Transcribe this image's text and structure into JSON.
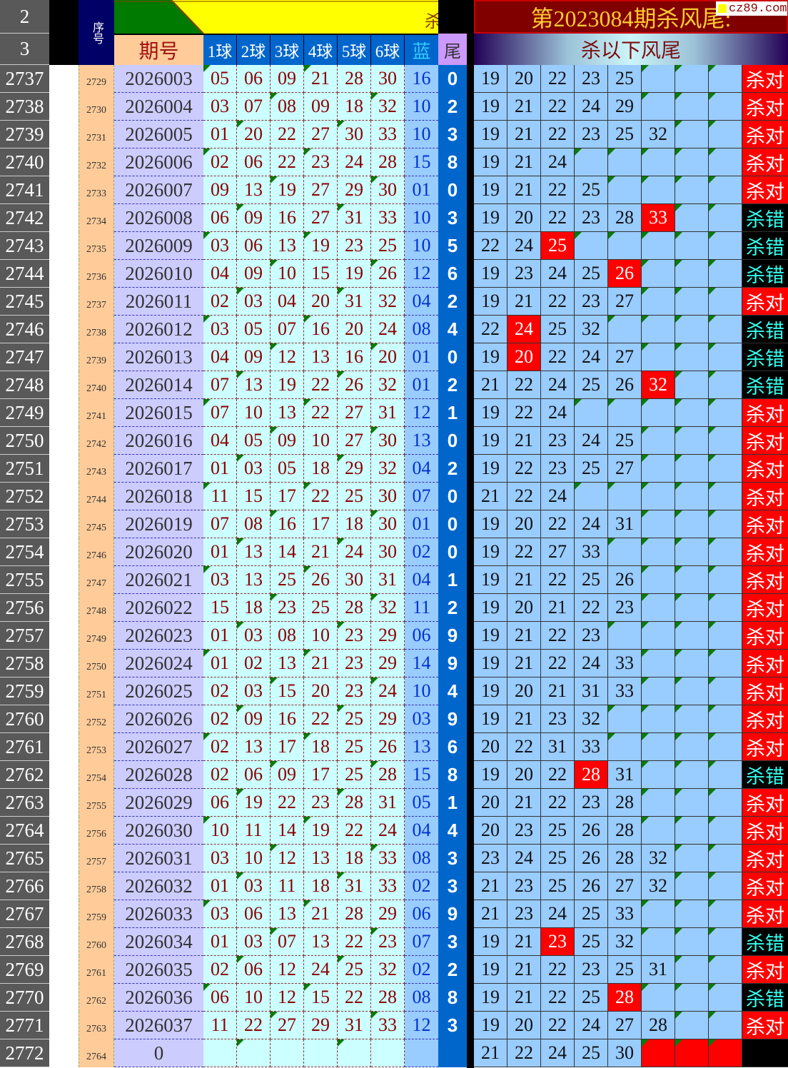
{
  "header": {
    "row_numbers": [
      "2",
      "3"
    ],
    "seq_label": "序号",
    "issue_label": "期号",
    "ball_labels": [
      "1球",
      "2球",
      "3球",
      "4球",
      "5球",
      "6球"
    ],
    "blue_label": "蓝",
    "tail_label": "尾",
    "title": "第2023084期杀风尾:",
    "subtitle": "杀以下风尾",
    "partial_glyph": "杀",
    "watermark": "cz89.com"
  },
  "colors": {
    "kill_hit": "#ff0000",
    "result_ok_bg": "#ff0000",
    "result_bad_bg": "#000000",
    "banner": "#800000"
  },
  "rows": [
    {
      "row": "2737",
      "seq": "2729",
      "issue": "2026003",
      "balls": [
        "05",
        "06",
        "09",
        "21",
        "28",
        "30"
      ],
      "blue": "16",
      "tail": "0",
      "kills": [
        "19",
        "20",
        "22",
        "23",
        "25"
      ],
      "hit": -1,
      "result": "杀对"
    },
    {
      "row": "2738",
      "seq": "2730",
      "issue": "2026004",
      "balls": [
        "03",
        "07",
        "08",
        "09",
        "18",
        "32"
      ],
      "blue": "10",
      "tail": "2",
      "kills": [
        "19",
        "21",
        "22",
        "24",
        "29"
      ],
      "hit": -1,
      "result": "杀对"
    },
    {
      "row": "2739",
      "seq": "2731",
      "issue": "2026005",
      "balls": [
        "01",
        "20",
        "22",
        "27",
        "30",
        "33"
      ],
      "blue": "10",
      "tail": "3",
      "kills": [
        "19",
        "21",
        "22",
        "23",
        "25",
        "32"
      ],
      "hit": -1,
      "result": "杀对"
    },
    {
      "row": "2740",
      "seq": "2732",
      "issue": "2026006",
      "balls": [
        "02",
        "06",
        "22",
        "23",
        "24",
        "28"
      ],
      "blue": "15",
      "tail": "8",
      "kills": [
        "19",
        "21",
        "24"
      ],
      "hit": -1,
      "result": "杀对"
    },
    {
      "row": "2741",
      "seq": "2733",
      "issue": "2026007",
      "balls": [
        "09",
        "13",
        "19",
        "27",
        "29",
        "30"
      ],
      "blue": "01",
      "tail": "0",
      "kills": [
        "19",
        "21",
        "22",
        "25"
      ],
      "hit": -1,
      "result": "杀对"
    },
    {
      "row": "2742",
      "seq": "2734",
      "issue": "2026008",
      "balls": [
        "06",
        "09",
        "16",
        "27",
        "31",
        "33"
      ],
      "blue": "10",
      "tail": "3",
      "kills": [
        "19",
        "20",
        "22",
        "23",
        "28",
        "33"
      ],
      "hit": 5,
      "result": "杀错"
    },
    {
      "row": "2743",
      "seq": "2735",
      "issue": "2026009",
      "balls": [
        "03",
        "06",
        "13",
        "19",
        "23",
        "25"
      ],
      "blue": "10",
      "tail": "5",
      "kills": [
        "22",
        "24",
        "25"
      ],
      "hit": 2,
      "result": "杀错"
    },
    {
      "row": "2744",
      "seq": "2736",
      "issue": "2026010",
      "balls": [
        "04",
        "09",
        "10",
        "15",
        "19",
        "26"
      ],
      "blue": "12",
      "tail": "6",
      "kills": [
        "19",
        "23",
        "24",
        "25",
        "26"
      ],
      "hit": 4,
      "result": "杀错"
    },
    {
      "row": "2745",
      "seq": "2737",
      "issue": "2026011",
      "balls": [
        "02",
        "03",
        "04",
        "20",
        "31",
        "32"
      ],
      "blue": "04",
      "tail": "2",
      "kills": [
        "19",
        "21",
        "22",
        "23",
        "27"
      ],
      "hit": -1,
      "result": "杀对"
    },
    {
      "row": "2746",
      "seq": "2738",
      "issue": "2026012",
      "balls": [
        "03",
        "05",
        "07",
        "16",
        "20",
        "24"
      ],
      "blue": "08",
      "tail": "4",
      "kills": [
        "22",
        "24",
        "25",
        "32"
      ],
      "hit": 1,
      "result": "杀错"
    },
    {
      "row": "2747",
      "seq": "2739",
      "issue": "2026013",
      "balls": [
        "04",
        "09",
        "12",
        "13",
        "16",
        "20"
      ],
      "blue": "01",
      "tail": "0",
      "kills": [
        "19",
        "20",
        "22",
        "24",
        "27"
      ],
      "hit": 1,
      "result": "杀错"
    },
    {
      "row": "2748",
      "seq": "2740",
      "issue": "2026014",
      "balls": [
        "07",
        "13",
        "19",
        "22",
        "26",
        "32"
      ],
      "blue": "01",
      "tail": "2",
      "kills": [
        "21",
        "22",
        "24",
        "25",
        "26",
        "32"
      ],
      "hit": 5,
      "result": "杀错"
    },
    {
      "row": "2749",
      "seq": "2741",
      "issue": "2026015",
      "balls": [
        "07",
        "10",
        "13",
        "22",
        "27",
        "31"
      ],
      "blue": "12",
      "tail": "1",
      "kills": [
        "19",
        "22",
        "24"
      ],
      "hit": -1,
      "result": "杀对"
    },
    {
      "row": "2750",
      "seq": "2742",
      "issue": "2026016",
      "balls": [
        "04",
        "05",
        "09",
        "10",
        "27",
        "30"
      ],
      "blue": "13",
      "tail": "0",
      "kills": [
        "19",
        "21",
        "23",
        "24",
        "25"
      ],
      "hit": -1,
      "result": "杀对"
    },
    {
      "row": "2751",
      "seq": "2743",
      "issue": "2026017",
      "balls": [
        "01",
        "03",
        "05",
        "18",
        "29",
        "32"
      ],
      "blue": "04",
      "tail": "2",
      "kills": [
        "19",
        "22",
        "23",
        "25",
        "27"
      ],
      "hit": -1,
      "result": "杀对"
    },
    {
      "row": "2752",
      "seq": "2744",
      "issue": "2026018",
      "balls": [
        "11",
        "15",
        "17",
        "22",
        "25",
        "30"
      ],
      "blue": "07",
      "tail": "0",
      "kills": [
        "21",
        "22",
        "24"
      ],
      "hit": -1,
      "result": "杀对"
    },
    {
      "row": "2753",
      "seq": "2745",
      "issue": "2026019",
      "balls": [
        "07",
        "08",
        "16",
        "17",
        "18",
        "30"
      ],
      "blue": "01",
      "tail": "0",
      "kills": [
        "19",
        "20",
        "22",
        "24",
        "31"
      ],
      "hit": -1,
      "result": "杀对"
    },
    {
      "row": "2754",
      "seq": "2746",
      "issue": "2026020",
      "balls": [
        "01",
        "13",
        "14",
        "21",
        "24",
        "30"
      ],
      "blue": "02",
      "tail": "0",
      "kills": [
        "19",
        "22",
        "27",
        "33"
      ],
      "hit": -1,
      "result": "杀对"
    },
    {
      "row": "2755",
      "seq": "2747",
      "issue": "2026021",
      "balls": [
        "03",
        "13",
        "25",
        "26",
        "30",
        "31"
      ],
      "blue": "04",
      "tail": "1",
      "kills": [
        "19",
        "21",
        "22",
        "25",
        "26"
      ],
      "hit": -1,
      "result": "杀对"
    },
    {
      "row": "2756",
      "seq": "2748",
      "issue": "2026022",
      "balls": [
        "15",
        "18",
        "23",
        "25",
        "28",
        "32"
      ],
      "blue": "11",
      "tail": "2",
      "kills": [
        "19",
        "20",
        "21",
        "22",
        "23"
      ],
      "hit": -1,
      "result": "杀对"
    },
    {
      "row": "2757",
      "seq": "2749",
      "issue": "2026023",
      "balls": [
        "01",
        "03",
        "08",
        "10",
        "23",
        "29"
      ],
      "blue": "06",
      "tail": "9",
      "kills": [
        "19",
        "21",
        "22",
        "23"
      ],
      "hit": -1,
      "result": "杀对"
    },
    {
      "row": "2758",
      "seq": "2750",
      "issue": "2026024",
      "balls": [
        "01",
        "02",
        "13",
        "21",
        "23",
        "29"
      ],
      "blue": "14",
      "tail": "9",
      "kills": [
        "19",
        "21",
        "22",
        "24",
        "33"
      ],
      "hit": -1,
      "result": "杀对"
    },
    {
      "row": "2759",
      "seq": "2751",
      "issue": "2026025",
      "balls": [
        "02",
        "03",
        "15",
        "20",
        "23",
        "24"
      ],
      "blue": "10",
      "tail": "4",
      "kills": [
        "19",
        "20",
        "21",
        "31",
        "33"
      ],
      "hit": -1,
      "result": "杀对"
    },
    {
      "row": "2760",
      "seq": "2752",
      "issue": "2026026",
      "balls": [
        "02",
        "09",
        "16",
        "22",
        "25",
        "29"
      ],
      "blue": "03",
      "tail": "9",
      "kills": [
        "19",
        "21",
        "23",
        "32"
      ],
      "hit": -1,
      "result": "杀对"
    },
    {
      "row": "2761",
      "seq": "2753",
      "issue": "2026027",
      "balls": [
        "02",
        "13",
        "17",
        "18",
        "25",
        "26"
      ],
      "blue": "13",
      "tail": "6",
      "kills": [
        "20",
        "22",
        "31",
        "33"
      ],
      "hit": -1,
      "result": "杀对"
    },
    {
      "row": "2762",
      "seq": "2754",
      "issue": "2026028",
      "balls": [
        "02",
        "06",
        "09",
        "17",
        "25",
        "28"
      ],
      "blue": "15",
      "tail": "8",
      "kills": [
        "19",
        "20",
        "22",
        "28",
        "31"
      ],
      "hit": 3,
      "result": "杀错"
    },
    {
      "row": "2763",
      "seq": "2755",
      "issue": "2026029",
      "balls": [
        "06",
        "19",
        "22",
        "23",
        "28",
        "31"
      ],
      "blue": "05",
      "tail": "1",
      "kills": [
        "20",
        "21",
        "22",
        "23",
        "28"
      ],
      "hit": -1,
      "result": "杀对"
    },
    {
      "row": "2764",
      "seq": "2756",
      "issue": "2026030",
      "balls": [
        "10",
        "11",
        "14",
        "19",
        "22",
        "24"
      ],
      "blue": "04",
      "tail": "4",
      "kills": [
        "20",
        "23",
        "25",
        "26",
        "28"
      ],
      "hit": -1,
      "result": "杀对"
    },
    {
      "row": "2765",
      "seq": "2757",
      "issue": "2026031",
      "balls": [
        "03",
        "10",
        "12",
        "13",
        "18",
        "33"
      ],
      "blue": "08",
      "tail": "3",
      "kills": [
        "23",
        "24",
        "25",
        "26",
        "28",
        "32"
      ],
      "hit": -1,
      "result": "杀对"
    },
    {
      "row": "2766",
      "seq": "2758",
      "issue": "2026032",
      "balls": [
        "01",
        "03",
        "11",
        "18",
        "31",
        "33"
      ],
      "blue": "02",
      "tail": "3",
      "kills": [
        "21",
        "23",
        "25",
        "26",
        "27",
        "32"
      ],
      "hit": -1,
      "result": "杀对"
    },
    {
      "row": "2767",
      "seq": "2759",
      "issue": "2026033",
      "balls": [
        "03",
        "06",
        "13",
        "21",
        "28",
        "29"
      ],
      "blue": "06",
      "tail": "9",
      "kills": [
        "21",
        "23",
        "24",
        "25",
        "33"
      ],
      "hit": -1,
      "result": "杀对"
    },
    {
      "row": "2768",
      "seq": "2760",
      "issue": "2026034",
      "balls": [
        "01",
        "03",
        "07",
        "13",
        "22",
        "23"
      ],
      "blue": "07",
      "tail": "3",
      "kills": [
        "19",
        "21",
        "23",
        "25",
        "32"
      ],
      "hit": 2,
      "result": "杀错"
    },
    {
      "row": "2769",
      "seq": "2761",
      "issue": "2026035",
      "balls": [
        "02",
        "06",
        "12",
        "24",
        "25",
        "32"
      ],
      "blue": "02",
      "tail": "2",
      "kills": [
        "19",
        "21",
        "22",
        "23",
        "25",
        "31"
      ],
      "hit": -1,
      "result": "杀对"
    },
    {
      "row": "2770",
      "seq": "2762",
      "issue": "2026036",
      "balls": [
        "06",
        "10",
        "12",
        "15",
        "22",
        "28"
      ],
      "blue": "08",
      "tail": "8",
      "kills": [
        "19",
        "21",
        "22",
        "25",
        "28"
      ],
      "hit": 4,
      "result": "杀错"
    },
    {
      "row": "2771",
      "seq": "2763",
      "issue": "2026037",
      "balls": [
        "11",
        "22",
        "27",
        "29",
        "31",
        "33"
      ],
      "blue": "12",
      "tail": "3",
      "kills": [
        "19",
        "20",
        "22",
        "24",
        "27",
        "28"
      ],
      "hit": -1,
      "result": "杀对"
    },
    {
      "row": "2772",
      "seq": "2764",
      "issue": "0",
      "balls": [
        "",
        "",
        "",
        "",
        "",
        ""
      ],
      "blue": "",
      "tail": "",
      "kills": [
        "21",
        "22",
        "24",
        "25",
        "30"
      ],
      "hit": -1,
      "result": "",
      "pending": true
    }
  ]
}
